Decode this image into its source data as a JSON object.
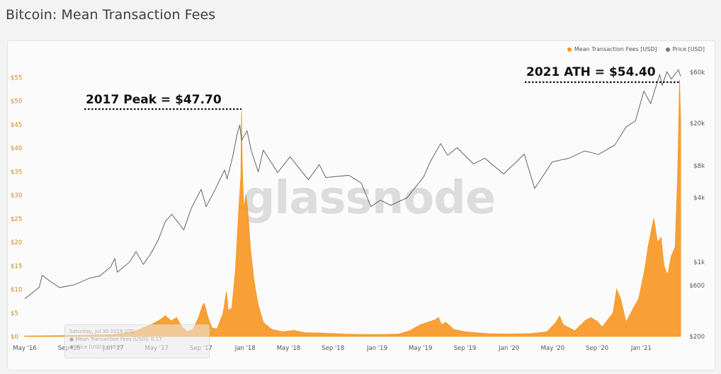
{
  "page": {
    "title": "Bitcoin: Mean Transaction Fees"
  },
  "legend": {
    "fees_label": "Mean Transaction Fees [USD]",
    "price_label": "Price [USD]"
  },
  "annotations": {
    "peak_2017": "2017 Peak = $47.70",
    "ath_2021": "2021 ATH = $54.40"
  },
  "watermark": "glassnode",
  "tooltip": {
    "line1": "Saturday, Jul 30 2016 UTC",
    "line2": "● Mean Transaction Fees [USD]: 0.17",
    "line3": "● Price [USD]: 655.87"
  },
  "colors": {
    "fees": "#f7931a",
    "price": "#555555",
    "background": "#fbfbfb"
  },
  "chart_data": {
    "type": "area",
    "title": "Bitcoin: Mean Transaction Fees",
    "x_ticks": [
      "May '16",
      "Sep '16",
      "Jan '17",
      "May '17",
      "Sep '17",
      "Jan '18",
      "May '18",
      "Sep '18",
      "Jan '19",
      "May '19",
      "Sep '19",
      "Jan '20",
      "May '20",
      "Sep '20",
      "Jan '21"
    ],
    "x_range": [
      "2016-05-01",
      "2021-04-20"
    ],
    "y_left_ticks": [
      "$0",
      "$5",
      "$10",
      "$15",
      "$20",
      "$25",
      "$30",
      "$35",
      "$40",
      "$45",
      "$50",
      "$55"
    ],
    "y_left_range": [
      0,
      57
    ],
    "y_right_ticks": [
      "$200",
      "$600",
      "$1k",
      "$4k",
      "$8k",
      "$20k",
      "$60k"
    ],
    "y_right_values": [
      200,
      600,
      1000,
      4000,
      8000,
      20000,
      60000
    ],
    "y_right_scale": "log",
    "legend_position": "top-right",
    "grid": false,
    "series": [
      {
        "name": "Mean Transaction Fees [USD]",
        "axis": "left",
        "type": "area",
        "points": [
          [
            "2016-05-01",
            0.1
          ],
          [
            "2016-07-01",
            0.15
          ],
          [
            "2016-09-01",
            0.2
          ],
          [
            "2016-11-01",
            0.3
          ],
          [
            "2017-01-01",
            0.4
          ],
          [
            "2017-02-15",
            0.8
          ],
          [
            "2017-03-15",
            1.5
          ],
          [
            "2017-04-15",
            2.5
          ],
          [
            "2017-05-10",
            3.5
          ],
          [
            "2017-05-25",
            4.4
          ],
          [
            "2017-06-10",
            3.3
          ],
          [
            "2017-06-25",
            4.0
          ],
          [
            "2017-07-10",
            2.0
          ],
          [
            "2017-07-25",
            1.0
          ],
          [
            "2017-08-10",
            1.6
          ],
          [
            "2017-08-25",
            4.0
          ],
          [
            "2017-09-05",
            6.6
          ],
          [
            "2017-09-10",
            7.0
          ],
          [
            "2017-09-20",
            4.0
          ],
          [
            "2017-10-01",
            1.8
          ],
          [
            "2017-10-15",
            1.6
          ],
          [
            "2017-11-01",
            5.0
          ],
          [
            "2017-11-10",
            9.5
          ],
          [
            "2017-11-15",
            5.5
          ],
          [
            "2017-11-25",
            6.0
          ],
          [
            "2017-12-05",
            14.0
          ],
          [
            "2017-12-15",
            28.0
          ],
          [
            "2017-12-20",
            34.0
          ],
          [
            "2017-12-22",
            47.7
          ],
          [
            "2017-12-24",
            36.0
          ],
          [
            "2017-12-28",
            27.0
          ],
          [
            "2018-01-03",
            30.0
          ],
          [
            "2018-01-08",
            27.0
          ],
          [
            "2018-01-15",
            19.0
          ],
          [
            "2018-01-25",
            12.0
          ],
          [
            "2018-02-05",
            7.0
          ],
          [
            "2018-02-20",
            3.0
          ],
          [
            "2018-03-15",
            1.5
          ],
          [
            "2018-04-15",
            1.0
          ],
          [
            "2018-05-15",
            1.3
          ],
          [
            "2018-06-15",
            0.8
          ],
          [
            "2018-08-01",
            0.7
          ],
          [
            "2018-10-01",
            0.5
          ],
          [
            "2018-12-01",
            0.4
          ],
          [
            "2019-01-15",
            0.4
          ],
          [
            "2019-03-01",
            0.5
          ],
          [
            "2019-04-01",
            1.2
          ],
          [
            "2019-05-01",
            2.5
          ],
          [
            "2019-05-20",
            3.0
          ],
          [
            "2019-06-10",
            3.5
          ],
          [
            "2019-06-20",
            4.0
          ],
          [
            "2019-06-28",
            2.5
          ],
          [
            "2019-07-10",
            3.0
          ],
          [
            "2019-08-01",
            1.5
          ],
          [
            "2019-09-01",
            1.0
          ],
          [
            "2019-11-01",
            0.6
          ],
          [
            "2020-01-01",
            0.5
          ],
          [
            "2020-03-01",
            0.6
          ],
          [
            "2020-04-15",
            1.0
          ],
          [
            "2020-05-10",
            3.0
          ],
          [
            "2020-05-20",
            4.3
          ],
          [
            "2020-05-30",
            2.5
          ],
          [
            "2020-07-01",
            1.2
          ],
          [
            "2020-08-01",
            3.5
          ],
          [
            "2020-08-15",
            4.0
          ],
          [
            "2020-09-01",
            3.2
          ],
          [
            "2020-09-15",
            2.0
          ],
          [
            "2020-10-15",
            5.0
          ],
          [
            "2020-10-25",
            10.0
          ],
          [
            "2020-11-05",
            8.0
          ],
          [
            "2020-11-20",
            3.0
          ],
          [
            "2020-12-10",
            6.0
          ],
          [
            "2020-12-25",
            8.0
          ],
          [
            "2021-01-10",
            14.0
          ],
          [
            "2021-01-20",
            19.0
          ],
          [
            "2021-01-30",
            23.0
          ],
          [
            "2021-02-05",
            25.0
          ],
          [
            "2021-02-15",
            20.0
          ],
          [
            "2021-02-25",
            21.0
          ],
          [
            "2021-03-05",
            15.0
          ],
          [
            "2021-03-15",
            13.0
          ],
          [
            "2021-03-25",
            17.0
          ],
          [
            "2021-04-05",
            19.0
          ],
          [
            "2021-04-12",
            35.0
          ],
          [
            "2021-04-17",
            54.4
          ],
          [
            "2021-04-20",
            46.0
          ]
        ]
      },
      {
        "name": "Price [USD]",
        "axis": "right",
        "type": "line",
        "points": [
          [
            "2016-05-01",
            450
          ],
          [
            "2016-06-10",
            580
          ],
          [
            "2016-06-18",
            750
          ],
          [
            "2016-07-10",
            660
          ],
          [
            "2016-08-05",
            575
          ],
          [
            "2016-09-15",
            610
          ],
          [
            "2016-10-25",
            700
          ],
          [
            "2016-11-25",
            740
          ],
          [
            "2016-12-25",
            900
          ],
          [
            "2017-01-05",
            1080
          ],
          [
            "2017-01-12",
            800
          ],
          [
            "2017-02-15",
            1000
          ],
          [
            "2017-03-05",
            1250
          ],
          [
            "2017-03-25",
            950
          ],
          [
            "2017-04-15",
            1200
          ],
          [
            "2017-05-05",
            1600
          ],
          [
            "2017-05-25",
            2400
          ],
          [
            "2017-06-12",
            2800
          ],
          [
            "2017-07-15",
            2000
          ],
          [
            "2017-08-05",
            3200
          ],
          [
            "2017-09-01",
            4800
          ],
          [
            "2017-09-15",
            3300
          ],
          [
            "2017-10-10",
            4800
          ],
          [
            "2017-11-05",
            7300
          ],
          [
            "2017-11-12",
            6000
          ],
          [
            "2017-11-28",
            10000
          ],
          [
            "2017-12-10",
            16000
          ],
          [
            "2017-12-17",
            19200
          ],
          [
            "2017-12-22",
            13800
          ],
          [
            "2018-01-06",
            17000
          ],
          [
            "2018-01-18",
            11000
          ],
          [
            "2018-02-06",
            7000
          ],
          [
            "2018-02-20",
            11200
          ],
          [
            "2018-04-01",
            6900
          ],
          [
            "2018-05-05",
            9700
          ],
          [
            "2018-06-25",
            5900
          ],
          [
            "2018-07-25",
            8200
          ],
          [
            "2018-08-12",
            6200
          ],
          [
            "2018-10-15",
            6500
          ],
          [
            "2018-11-18",
            5500
          ],
          [
            "2018-12-15",
            3300
          ],
          [
            "2019-01-10",
            3800
          ],
          [
            "2019-02-08",
            3400
          ],
          [
            "2019-03-25",
            4000
          ],
          [
            "2019-05-10",
            6300
          ],
          [
            "2019-05-28",
            8700
          ],
          [
            "2019-06-26",
            12900
          ],
          [
            "2019-07-15",
            10000
          ],
          [
            "2019-08-10",
            11800
          ],
          [
            "2019-09-25",
            8300
          ],
          [
            "2019-10-26",
            9400
          ],
          [
            "2019-12-17",
            6700
          ],
          [
            "2020-01-20",
            8600
          ],
          [
            "2020-02-12",
            10300
          ],
          [
            "2020-03-12",
            4900
          ],
          [
            "2020-04-30",
            8700
          ],
          [
            "2020-06-15",
            9400
          ],
          [
            "2020-07-28",
            11000
          ],
          [
            "2020-09-05",
            10200
          ],
          [
            "2020-10-20",
            12500
          ],
          [
            "2020-11-20",
            18500
          ],
          [
            "2020-12-16",
            21000
          ],
          [
            "2021-01-08",
            40000
          ],
          [
            "2021-01-27",
            30500
          ],
          [
            "2021-02-21",
            57500
          ],
          [
            "2021-02-28",
            45200
          ],
          [
            "2021-03-13",
            61000
          ],
          [
            "2021-03-25",
            52000
          ],
          [
            "2021-04-14",
            63500
          ],
          [
            "2021-04-20",
            55000
          ]
        ]
      }
    ]
  }
}
